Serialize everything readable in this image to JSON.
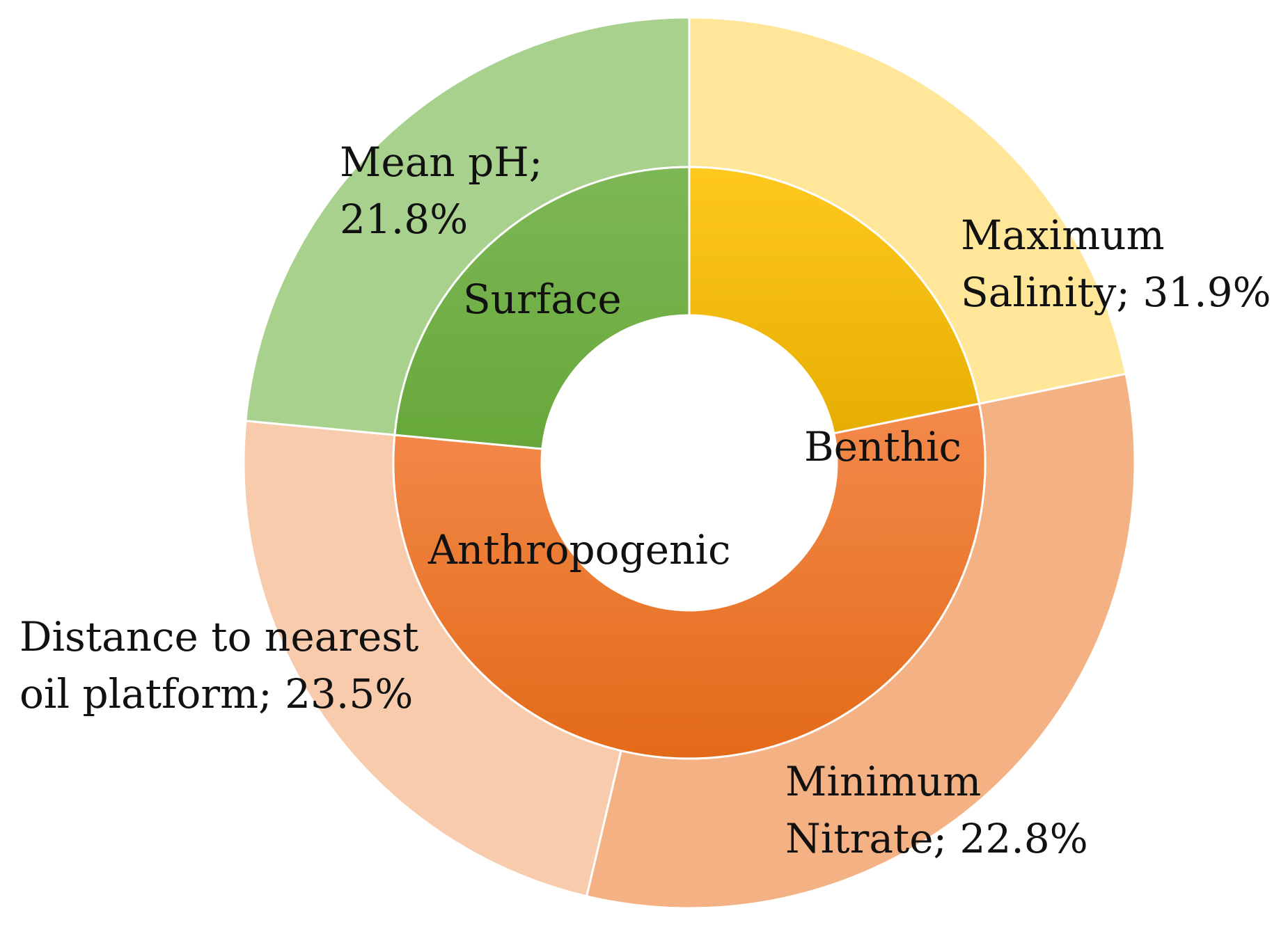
{
  "chart_data": {
    "type": "sunburst",
    "title": "",
    "inner_ring": [
      {
        "label": "Surface",
        "value": 21.8,
        "color": "#F5B400"
      },
      {
        "label": "Benthic",
        "value": 54.7,
        "color": "#EF7324"
      },
      {
        "label": "Anthropogenic",
        "value": 23.5,
        "color": "#70AD47"
      }
    ],
    "outer_ring": [
      {
        "label_lines": [
          "Mean pH;",
          "21.8%"
        ],
        "variable": "Mean pH",
        "value": 21.8,
        "parent": "Surface",
        "color": "#FFE699"
      },
      {
        "label_lines": [
          "Maximum",
          "Salinity; 31.9%"
        ],
        "variable": "Maximum Salinity",
        "value": 31.9,
        "parent": "Benthic",
        "color": "#F4B183"
      },
      {
        "label_lines": [
          "Minimum",
          "Nitrate; 22.8%"
        ],
        "variable": "Minimum Nitrate",
        "value": 22.8,
        "parent": "Benthic",
        "color": "#F8CBAD"
      },
      {
        "label_lines": [
          "Distance to nearest",
          "oil platform; 23.5%"
        ],
        "variable": "Distance to nearest oil platform",
        "value": 23.5,
        "parent": "Anthropogenic",
        "color": "#A9D18E"
      }
    ],
    "legend": "none",
    "grid": false
  }
}
